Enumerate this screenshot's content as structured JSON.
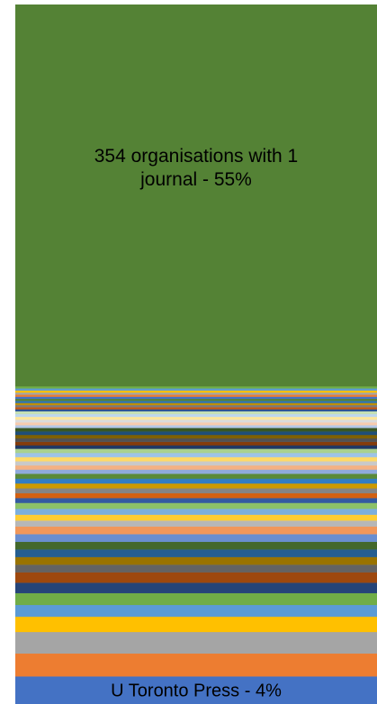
{
  "chart_data": {
    "type": "bar",
    "orientation": "stacked-vertical-100-percent",
    "unit": "%",
    "segments": [
      {
        "label": "U Toronto Press - 4%",
        "value": 4,
        "color": "#4472c4"
      },
      {
        "label": "",
        "value": 3.3,
        "color": "#ed7d31"
      },
      {
        "label": "",
        "value": 3.1,
        "color": "#a5a5a5"
      },
      {
        "label": "",
        "value": 2.2,
        "color": "#ffc000"
      },
      {
        "label": "",
        "value": 1.7,
        "color": "#5b9bd5"
      },
      {
        "label": "",
        "value": 1.7,
        "color": "#70ad47"
      },
      {
        "label": "",
        "value": 1.5,
        "color": "#264478"
      },
      {
        "label": "",
        "value": 1.5,
        "color": "#9e480e"
      },
      {
        "label": "",
        "value": 1.1,
        "color": "#636363"
      },
      {
        "label": "",
        "value": 1.1,
        "color": "#997300"
      },
      {
        "label": "",
        "value": 1.1,
        "color": "#255e91"
      },
      {
        "label": "",
        "value": 1.1,
        "color": "#43682b"
      },
      {
        "label": "",
        "value": 1.1,
        "color": "#698ed0"
      },
      {
        "label": "",
        "value": 1.1,
        "color": "#f1975a"
      },
      {
        "label": "",
        "value": 0.85,
        "color": "#b7b7b7"
      },
      {
        "label": "",
        "value": 0.85,
        "color": "#ffcd33"
      },
      {
        "label": "",
        "value": 0.85,
        "color": "#7cafdd"
      },
      {
        "label": "",
        "value": 0.85,
        "color": "#8cc168"
      },
      {
        "label": "",
        "value": 0.7,
        "color": "#335aa1"
      },
      {
        "label": "",
        "value": 0.7,
        "color": "#d26012"
      },
      {
        "label": "",
        "value": 0.7,
        "color": "#848484"
      },
      {
        "label": "",
        "value": 0.7,
        "color": "#cc9a00"
      },
      {
        "label": "",
        "value": 0.7,
        "color": "#327dc2"
      },
      {
        "label": "",
        "value": 0.7,
        "color": "#5a8a39"
      },
      {
        "label": "",
        "value": 0.6,
        "color": "#8faadc"
      },
      {
        "label": "",
        "value": 0.6,
        "color": "#f4b183"
      },
      {
        "label": "",
        "value": 0.6,
        "color": "#c9c9c9"
      },
      {
        "label": "",
        "value": 0.6,
        "color": "#ffd966"
      },
      {
        "label": "",
        "value": 0.6,
        "color": "#9dc3e6"
      },
      {
        "label": "",
        "value": 0.6,
        "color": "#a9d18e"
      },
      {
        "label": "",
        "value": 0.5,
        "color": "#203864"
      },
      {
        "label": "",
        "value": 0.5,
        "color": "#843c0c"
      },
      {
        "label": "",
        "value": 0.5,
        "color": "#525252"
      },
      {
        "label": "",
        "value": 0.5,
        "color": "#7f6000"
      },
      {
        "label": "",
        "value": 0.5,
        "color": "#1f4e79"
      },
      {
        "label": "",
        "value": 0.5,
        "color": "#385723"
      },
      {
        "label": "",
        "value": 0.4,
        "color": "#b4c7e7"
      },
      {
        "label": "",
        "value": 0.4,
        "color": "#f8cbad"
      },
      {
        "label": "",
        "value": 0.4,
        "color": "#dbdbdb"
      },
      {
        "label": "",
        "value": 0.4,
        "color": "#ffe699"
      },
      {
        "label": "",
        "value": 0.4,
        "color": "#bdd7ee"
      },
      {
        "label": "",
        "value": 0.4,
        "color": "#c5e0b4"
      },
      {
        "label": "",
        "value": 0.3,
        "color": "#2f5597"
      },
      {
        "label": "",
        "value": 0.3,
        "color": "#c55a11"
      },
      {
        "label": "",
        "value": 0.3,
        "color": "#7b7b7b"
      },
      {
        "label": "",
        "value": 0.3,
        "color": "#bf9000"
      },
      {
        "label": "",
        "value": 0.3,
        "color": "#2e75b6"
      },
      {
        "label": "",
        "value": 0.3,
        "color": "#548235"
      },
      {
        "label": "",
        "value": 0.3,
        "color": "#4472c4"
      },
      {
        "label": "",
        "value": 0.3,
        "color": "#ed7d31"
      },
      {
        "label": "",
        "value": 0.3,
        "color": "#a5a5a5"
      },
      {
        "label": "",
        "value": 0.3,
        "color": "#ffc000"
      },
      {
        "label": "",
        "value": 0.3,
        "color": "#5b9bd5"
      },
      {
        "label": "",
        "value": 0.3,
        "color": "#70ad47"
      },
      {
        "label": "354 organisations with 1 journal - 55%",
        "value": 55,
        "color": "#548235"
      }
    ]
  }
}
